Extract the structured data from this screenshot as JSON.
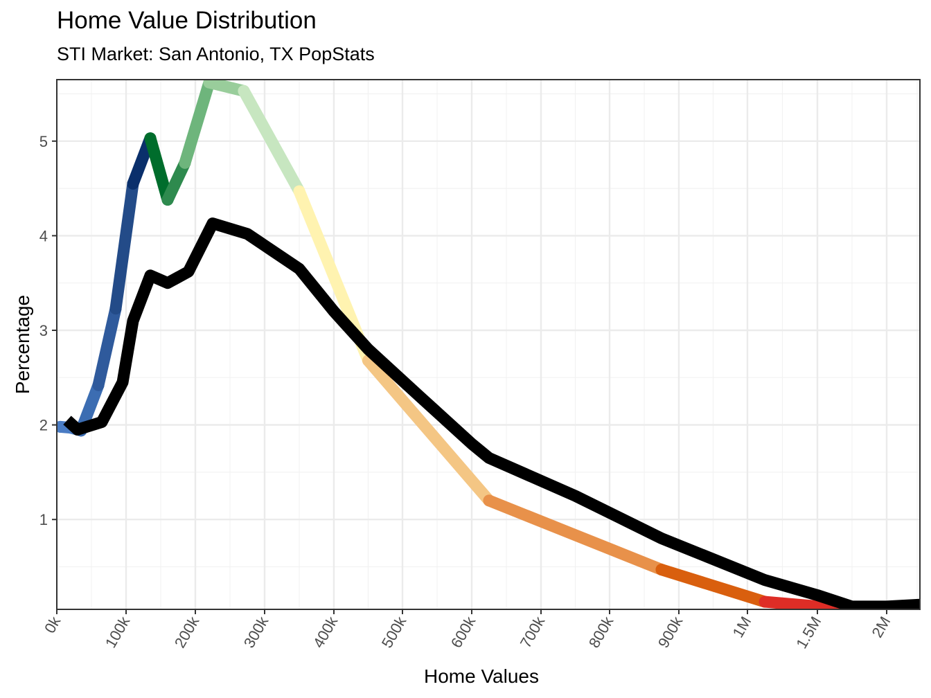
{
  "chart_data": {
    "type": "line",
    "title": "Home Value Distribution",
    "subtitle": "STI Market: San Antonio, TX PopStats",
    "xlabel": "Home Values",
    "ylabel": "Percentage",
    "ylim": [
      0.05,
      5.65
    ],
    "y_ticks": [
      1,
      2,
      3,
      4,
      5
    ],
    "x_tick_labels": [
      "0k",
      "100k",
      "200k",
      "300k",
      "400k",
      "500k",
      "600k",
      "700k",
      "800k",
      "900k",
      "1M",
      "1.5M",
      "2M"
    ],
    "grid": true,
    "legend": "none",
    "series": [
      {
        "style": "gradient-colored",
        "points": [
          {
            "x": "5k",
            "y": 1.98,
            "color": "#4a7cc4"
          },
          {
            "x": "20k",
            "y": 1.97,
            "color": "#4a7cc4"
          },
          {
            "x": "35k",
            "y": 1.94,
            "color": "#3c6db2"
          },
          {
            "x": "60k",
            "y": 2.42,
            "color": "#2f5a9c"
          },
          {
            "x": "85k",
            "y": 3.23,
            "color": "#234b88"
          },
          {
            "x": "110k",
            "y": 4.55,
            "color": "#0a2f6b"
          },
          {
            "x": "135k",
            "y": 5.03,
            "color": "#006d2c"
          },
          {
            "x": "160k",
            "y": 4.38,
            "color": "#2e8a4e"
          },
          {
            "x": "185k",
            "y": 4.77,
            "color": "#6eb57c"
          },
          {
            "x": "220k",
            "y": 5.62,
            "color": "#99cd9b"
          },
          {
            "x": "270k",
            "y": 5.53,
            "color": "#c7e6c0"
          },
          {
            "x": "350k",
            "y": 4.47,
            "color": "#fff3b0"
          },
          {
            "x": "450k",
            "y": 2.68,
            "color": "#f4c684"
          },
          {
            "x": "625k",
            "y": 1.2,
            "color": "#e8914a"
          },
          {
            "x": "875k",
            "y": 0.47,
            "color": "#d95f0e"
          },
          {
            "x": "1.125M",
            "y": 0.13,
            "color": "#de2d26"
          },
          {
            "x": "1.75M",
            "y": 0.05,
            "color": "#9e9ac8"
          },
          {
            "x": "2.5M",
            "y": 0.03,
            "color": "#6a51a3"
          }
        ]
      },
      {
        "style": "black",
        "color": "#000000",
        "points": [
          {
            "x": "15k",
            "y": 2.05
          },
          {
            "x": "30k",
            "y": 1.95
          },
          {
            "x": "65k",
            "y": 2.03
          },
          {
            "x": "95k",
            "y": 2.45
          },
          {
            "x": "110k",
            "y": 3.1
          },
          {
            "x": "135k",
            "y": 3.58
          },
          {
            "x": "160k",
            "y": 3.5
          },
          {
            "x": "190k",
            "y": 3.62
          },
          {
            "x": "225k",
            "y": 4.13
          },
          {
            "x": "275k",
            "y": 4.02
          },
          {
            "x": "350k",
            "y": 3.65
          },
          {
            "x": "400k",
            "y": 3.2
          },
          {
            "x": "450k",
            "y": 2.8
          },
          {
            "x": "525k",
            "y": 2.3
          },
          {
            "x": "600k",
            "y": 1.8
          },
          {
            "x": "625k",
            "y": 1.65
          },
          {
            "x": "750k",
            "y": 1.25
          },
          {
            "x": "875k",
            "y": 0.8
          },
          {
            "x": "1.125M",
            "y": 0.36
          },
          {
            "x": "1.5M",
            "y": 0.2
          },
          {
            "x": "1.75M",
            "y": 0.08
          },
          {
            "x": "2M",
            "y": 0.08
          },
          {
            "x": "2.5M",
            "y": 0.1
          }
        ]
      }
    ]
  }
}
